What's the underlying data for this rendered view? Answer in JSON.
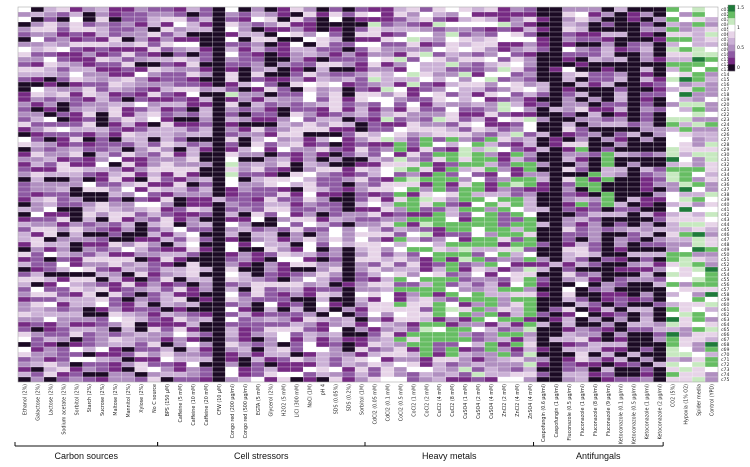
{
  "chart_data": {
    "type": "heatmap",
    "title": "",
    "colorbar": {
      "ticks": [
        "1.5",
        "1",
        "0.5",
        "0"
      ],
      "colors": {
        "dark_green": "#1f7a3a",
        "green": "#66bd63",
        "light_green": "#c7e9c0",
        "white": "#ffffff",
        "light_purple": "#e7d4e8",
        "purple": "#b08fc0",
        "dark_purple": "#762a83",
        "black": "#1b0a24"
      }
    },
    "columns": [
      "Ethanol (2%)",
      "Galactose (2%)",
      "Lactose (2%)",
      "Sodium acetate (2%)",
      "Sorbitol (2%)",
      "Starch (2%)",
      "Sucrose (2%)",
      "Maltose (2%)",
      "Mannitol (2%)",
      "Xylose (2%)",
      "No C source",
      "BPS (150 μM)",
      "Caffeine (5 mM)",
      "Caffeine (10 mM)",
      "Caffeine (20 mM)",
      "CFW (10 μM)",
      "Congo red (200 μg/ml)",
      "Congo red (500 μg/ml)",
      "EGTA (5 mM)",
      "Glycerol (2%)",
      "H2O2 (5 mM)",
      "LiCl (300 mM)",
      "NaCl (1M)",
      "pH 4",
      "SDS (0.05%)",
      "SDS (0.2%)",
      "Sorbitol (1M)",
      "CdCl2 (0.05 mM)",
      "CdCl2 (0.1 mM)",
      "CoCl2 (0.5 mM)",
      "CoCl2 (1 mM)",
      "CoCl2 (2 mM)",
      "CuCl2 (4 mM)",
      "CuCl2 (8 mM)",
      "CuSO4 (1 mM)",
      "CuSO4 (2 mM)",
      "CuSO4 (4 mM)",
      "ZnCl2 (2 mM)",
      "ZnCl2 (4 mM)",
      "ZnSO4 (4 mM)",
      "Caspofungin (0.6 μg/ml)",
      "Caspofungin (1 μg/ml)",
      "Fluconazole (0.5 μg/ml)",
      "Fluconazole (1 μg/ml)",
      "Fluconazole (8 μg/ml)",
      "Fluconazole (9 μg/ml)",
      "Ketoconazole (0.1 μg/ml)",
      "Ketoconazole (0.5 μg/ml)",
      "Ketoconazole (1 μg/ml)",
      "Ketoconazole (2 μg/ml)",
      "CO2 (5%)",
      "Hypoxia (1% O2)",
      "Spider media",
      "Control (YPD)"
    ],
    "rows": [
      "c01",
      "c02",
      "c03",
      "c04",
      "c05",
      "c06",
      "c07",
      "c08",
      "c09",
      "c10",
      "c11",
      "c12",
      "c13",
      "c14",
      "c15",
      "c16",
      "c17",
      "c18",
      "c19",
      "c20",
      "c21",
      "c22",
      "c23",
      "c24",
      "c25",
      "c26",
      "c27",
      "c28",
      "c29",
      "c30",
      "c31",
      "c32",
      "c33",
      "c34",
      "c35",
      "c36",
      "c37",
      "c38",
      "c39",
      "c40",
      "c41",
      "c42",
      "c43",
      "c44",
      "c45",
      "c46",
      "c47",
      "c48",
      "c49",
      "c50",
      "c51",
      "c52",
      "c53",
      "c54",
      "c55",
      "c56",
      "c57",
      "c58",
      "c59",
      "c60",
      "c61",
      "c62",
      "c63",
      "c64",
      "c65",
      "c66",
      "c67",
      "c68",
      "c69",
      "c70",
      "c71",
      "c72",
      "c73",
      "c74",
      "c75"
    ],
    "groups": [
      {
        "label": "Carbon sources",
        "start": 0,
        "end": 10
      },
      {
        "label": "Cell stressors",
        "start": 11,
        "end": 26
      },
      {
        "label": "Heavy metals",
        "start": 27,
        "end": 39
      },
      {
        "label": "Antifungals",
        "start": 40,
        "end": 49
      }
    ],
    "grid": true,
    "legend": "top-right"
  }
}
